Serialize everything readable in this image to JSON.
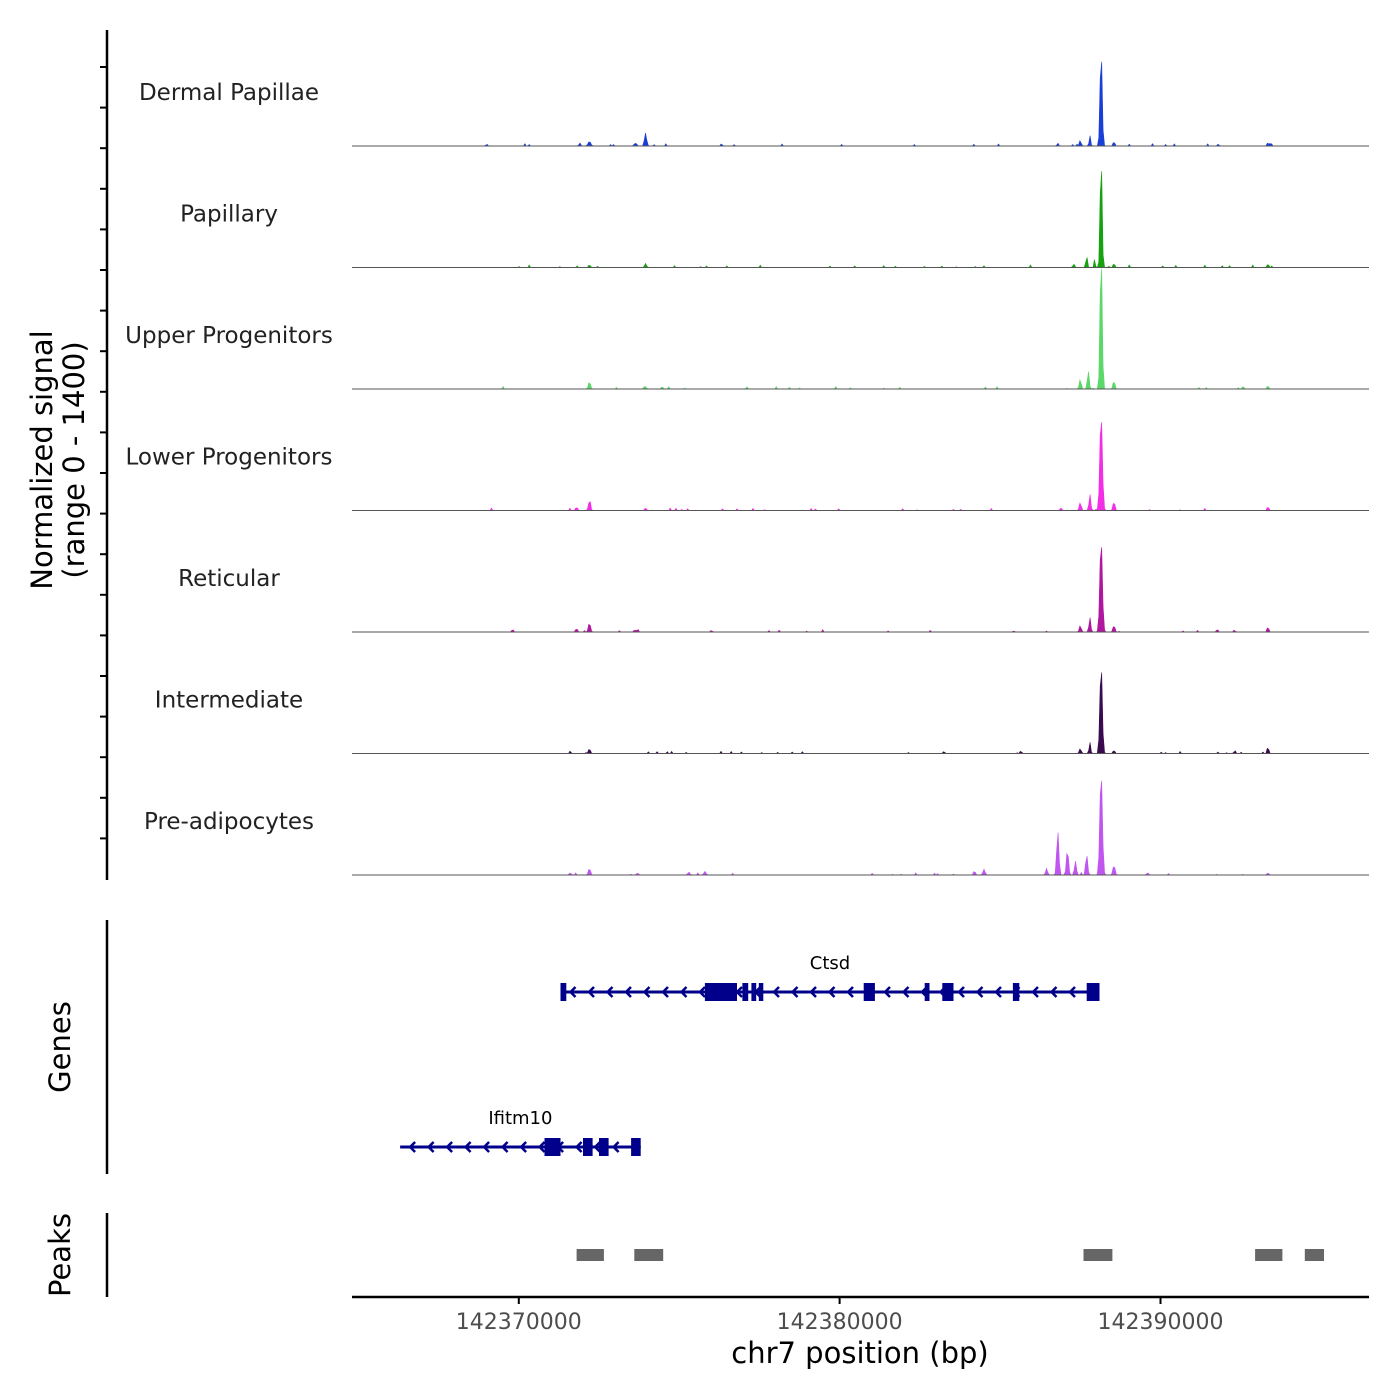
{
  "chart_data": {
    "type": "area",
    "title": "",
    "xlabel": "chr7 position (bp)",
    "ylabel": "Normalized signal",
    "ylabel_range": "(range 0 - 1400)",
    "xlim": [
      142364800,
      142396500
    ],
    "ylim": [
      0,
      1400
    ],
    "x_ticks": [
      142370000,
      142380000,
      142390000
    ],
    "x_tick_labels": [
      "142370000",
      "142380000",
      "142390000"
    ],
    "grid": false,
    "legend": "none",
    "series": [
      {
        "name": "Dermal Papillae",
        "color": "#1a3fd6",
        "peaks": [
          {
            "x": 142388150,
            "height": 1190,
            "width": 110
          },
          {
            "x": 142387800,
            "height": 110,
            "width": 80
          },
          {
            "x": 142387500,
            "height": 70,
            "width": 90
          },
          {
            "x": 142388550,
            "height": 60,
            "width": 80
          },
          {
            "x": 142373950,
            "height": 160,
            "width": 110
          },
          {
            "x": 142373650,
            "height": 45,
            "width": 80
          },
          {
            "x": 142372200,
            "height": 55,
            "width": 140
          },
          {
            "x": 142371900,
            "height": 40,
            "width": 80
          },
          {
            "x": 142386800,
            "height": 35,
            "width": 80
          },
          {
            "x": 142393350,
            "height": 55,
            "width": 70
          },
          {
            "x": 142369000,
            "height": 22,
            "width": 90
          },
          {
            "x": 142391800,
            "height": 22,
            "width": 90
          }
        ]
      },
      {
        "name": "Papillary",
        "color": "#16a10f",
        "peaks": [
          {
            "x": 142388150,
            "height": 1400,
            "width": 100
          },
          {
            "x": 142387700,
            "height": 150,
            "width": 80
          },
          {
            "x": 142387950,
            "height": 110,
            "width": 60
          },
          {
            "x": 142388550,
            "height": 55,
            "width": 80
          },
          {
            "x": 142387300,
            "height": 40,
            "width": 100
          },
          {
            "x": 142373950,
            "height": 50,
            "width": 100
          },
          {
            "x": 142372200,
            "height": 35,
            "width": 90
          },
          {
            "x": 142393350,
            "height": 55,
            "width": 70
          }
        ]
      },
      {
        "name": "Upper Progenitors",
        "color": "#5cd86a",
        "peaks": [
          {
            "x": 142388150,
            "height": 1700,
            "width": 110
          },
          {
            "x": 142387750,
            "height": 230,
            "width": 90
          },
          {
            "x": 142387500,
            "height": 120,
            "width": 100
          },
          {
            "x": 142388550,
            "height": 100,
            "width": 100
          },
          {
            "x": 142372200,
            "height": 90,
            "width": 110
          },
          {
            "x": 142373950,
            "height": 30,
            "width": 90
          },
          {
            "x": 142393350,
            "height": 50,
            "width": 70
          }
        ]
      },
      {
        "name": "Lower Progenitors",
        "color": "#f22ee6",
        "peaks": [
          {
            "x": 142388150,
            "height": 1200,
            "width": 130
          },
          {
            "x": 142387800,
            "height": 200,
            "width": 90
          },
          {
            "x": 142387500,
            "height": 100,
            "width": 100
          },
          {
            "x": 142388550,
            "height": 110,
            "width": 100
          },
          {
            "x": 142372200,
            "height": 110,
            "width": 110
          },
          {
            "x": 142371800,
            "height": 40,
            "width": 110
          },
          {
            "x": 142373950,
            "height": 30,
            "width": 100
          },
          {
            "x": 142386900,
            "height": 30,
            "width": 100
          },
          {
            "x": 142393350,
            "height": 60,
            "width": 70
          }
        ]
      },
      {
        "name": "Reticular",
        "color": "#b0169e",
        "peaks": [
          {
            "x": 142388150,
            "height": 1150,
            "width": 130
          },
          {
            "x": 142387800,
            "height": 180,
            "width": 90
          },
          {
            "x": 142387500,
            "height": 80,
            "width": 100
          },
          {
            "x": 142388550,
            "height": 80,
            "width": 100
          },
          {
            "x": 142372200,
            "height": 110,
            "width": 110
          },
          {
            "x": 142371800,
            "height": 40,
            "width": 110
          },
          {
            "x": 142373650,
            "height": 25,
            "width": 100
          },
          {
            "x": 142369800,
            "height": 25,
            "width": 90
          },
          {
            "x": 142376000,
            "height": 20,
            "width": 90
          },
          {
            "x": 142393350,
            "height": 80,
            "width": 70
          },
          {
            "x": 142392300,
            "height": 25,
            "width": 80
          }
        ]
      },
      {
        "name": "Intermediate",
        "color": "#3b0a4e",
        "peaks": [
          {
            "x": 142388150,
            "height": 1120,
            "width": 120
          },
          {
            "x": 142387800,
            "height": 140,
            "width": 80
          },
          {
            "x": 142387500,
            "height": 60,
            "width": 100
          },
          {
            "x": 142388550,
            "height": 40,
            "width": 90
          },
          {
            "x": 142372200,
            "height": 60,
            "width": 100
          },
          {
            "x": 142393350,
            "height": 100,
            "width": 70
          },
          {
            "x": 142392300,
            "height": 20,
            "width": 80
          }
        ]
      },
      {
        "name": "Pre-adipocytes",
        "color": "#c055f0",
        "peaks": [
          {
            "x": 142388150,
            "height": 1280,
            "width": 130
          },
          {
            "x": 142386800,
            "height": 540,
            "width": 110
          },
          {
            "x": 142387100,
            "height": 310,
            "width": 110
          },
          {
            "x": 142387700,
            "height": 260,
            "width": 100
          },
          {
            "x": 142387350,
            "height": 170,
            "width": 100
          },
          {
            "x": 142386450,
            "height": 80,
            "width": 100
          },
          {
            "x": 142388550,
            "height": 120,
            "width": 110
          },
          {
            "x": 142384500,
            "height": 70,
            "width": 110
          },
          {
            "x": 142384200,
            "height": 50,
            "width": 100
          },
          {
            "x": 142372200,
            "height": 80,
            "width": 110
          },
          {
            "x": 142371600,
            "height": 25,
            "width": 110
          },
          {
            "x": 142375800,
            "height": 45,
            "width": 110
          },
          {
            "x": 142375300,
            "height": 35,
            "width": 110
          },
          {
            "x": 142373700,
            "height": 25,
            "width": 100
          },
          {
            "x": 142389600,
            "height": 30,
            "width": 90
          },
          {
            "x": 142393350,
            "height": 35,
            "width": 70
          }
        ]
      }
    ],
    "genes": {
      "label": "Genes",
      "items": [
        {
          "name": "Ctsd",
          "strand": "-",
          "start": 142371300,
          "end": 142388100,
          "exons": [
            [
              142371300,
              142371480
            ],
            [
              142375800,
              142376800
            ],
            [
              142376970,
              142377150
            ],
            [
              142377250,
              142377400
            ],
            [
              142377480,
              142377620
            ],
            [
              142380750,
              142381100
            ],
            [
              142382650,
              142382800
            ],
            [
              142383200,
              142383550
            ],
            [
              142385400,
              142385600
            ],
            [
              142387700,
              142388100
            ]
          ]
        },
        {
          "name": "Ifitm10",
          "strand": "-",
          "start": 142366300,
          "end": 142373800,
          "exons": [
            [
              142370800,
              142371300
            ],
            [
              142372000,
              142372300
            ],
            [
              142372500,
              142372800
            ],
            [
              142373500,
              142373800
            ]
          ]
        }
      ]
    },
    "peaks_track": {
      "label": "Peaks",
      "regions": [
        [
          142371800,
          142372650
        ],
        [
          142373600,
          142374500
        ],
        [
          142387600,
          142388500
        ],
        [
          142392950,
          142393800
        ],
        [
          142394500,
          142395100
        ]
      ]
    }
  }
}
